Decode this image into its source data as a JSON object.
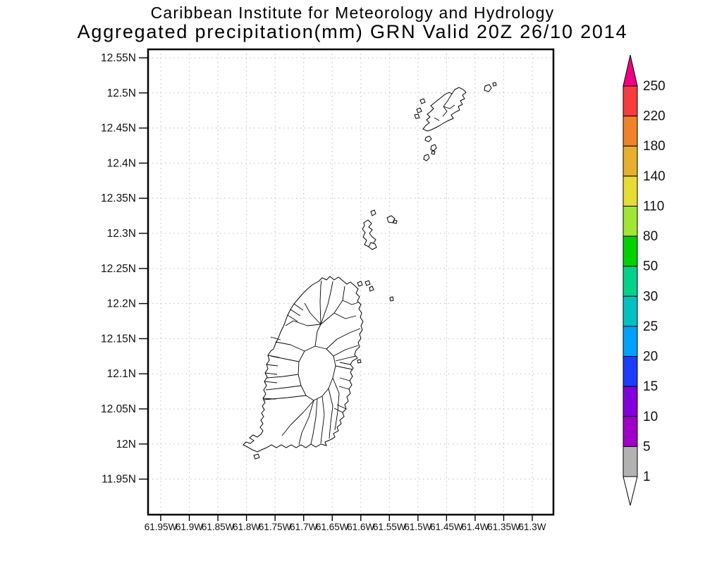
{
  "chart_data": {
    "type": "map",
    "title": "Caribbean Institute for Meteorology and Hydrology",
    "subtitle": "Aggregated precipitation(mm) GRN Valid 20Z 26/10 2014",
    "lat_ticks": [
      "12.55N",
      "12.5N",
      "12.45N",
      "12.4N",
      "12.35N",
      "12.3N",
      "12.25N",
      "12.2N",
      "12.15N",
      "12.1N",
      "12.05N",
      "12N",
      "11.95N"
    ],
    "lon_ticks": [
      "61.95W",
      "61.9W",
      "61.85W",
      "61.8W",
      "61.75W",
      "61.7W",
      "61.65W",
      "61.6W",
      "61.55W",
      "61.5W",
      "61.45W",
      "61.4W",
      "61.35W",
      "61.3W"
    ],
    "grid": true,
    "colorbar": {
      "levels": [
        1,
        5,
        10,
        15,
        20,
        25,
        30,
        50,
        80,
        110,
        140,
        180,
        220,
        250
      ],
      "segment_colors_bottom_to_top": [
        "#ffffff",
        "#b2b2b2",
        "#a000c8",
        "#8200dc",
        "#1e3cff",
        "#00a0ff",
        "#00c2c2",
        "#00d28c",
        "#00d200",
        "#a0e632",
        "#e6dc32",
        "#e6af2d",
        "#f08228",
        "#f83c3c",
        "#f00082"
      ]
    }
  }
}
